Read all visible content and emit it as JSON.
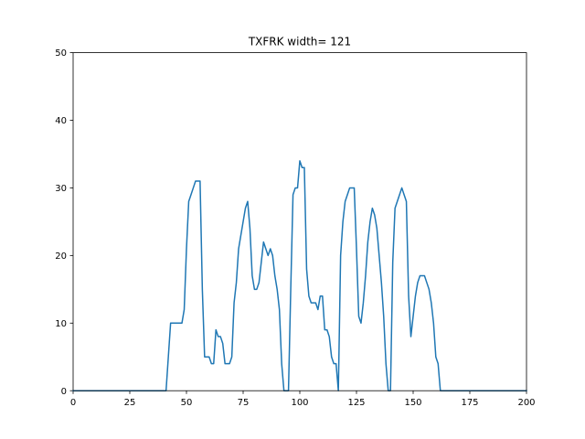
{
  "chart_data": {
    "type": "line",
    "title": "TXFRK width= 121",
    "xlabel": "",
    "ylabel": "",
    "xlim": [
      0,
      200
    ],
    "ylim": [
      0,
      50
    ],
    "xticks": [
      0,
      25,
      50,
      75,
      100,
      125,
      150,
      175,
      200
    ],
    "yticks": [
      0,
      10,
      20,
      30,
      40,
      50
    ],
    "grid": false,
    "series": [
      {
        "color": "#1f77b4",
        "x": [
          0,
          41,
          42,
          43,
          44,
          45,
          46,
          47,
          48,
          49,
          50,
          51,
          52,
          53,
          54,
          55,
          56,
          57,
          58,
          59,
          60,
          61,
          62,
          63,
          64,
          65,
          66,
          67,
          68,
          69,
          70,
          71,
          72,
          73,
          74,
          75,
          76,
          77,
          78,
          79,
          80,
          81,
          82,
          83,
          84,
          85,
          86,
          87,
          88,
          89,
          90,
          91,
          92,
          93,
          94,
          95,
          96,
          97,
          98,
          99,
          100,
          101,
          102,
          103,
          104,
          105,
          106,
          107,
          108,
          109,
          110,
          111,
          112,
          113,
          114,
          115,
          116,
          117,
          118,
          119,
          120,
          121,
          122,
          123,
          124,
          125,
          126,
          127,
          128,
          129,
          130,
          131,
          132,
          133,
          134,
          135,
          136,
          137,
          138,
          139,
          140,
          141,
          142,
          143,
          144,
          145,
          146,
          147,
          148,
          149,
          150,
          151,
          152,
          153,
          154,
          155,
          156,
          157,
          158,
          159,
          160,
          161,
          162,
          200
        ],
        "y": [
          0,
          0,
          5,
          10,
          10,
          10,
          10,
          10,
          10,
          12,
          21,
          28,
          29,
          30,
          31,
          31,
          31,
          15,
          5,
          5,
          5,
          4,
          4,
          9,
          8,
          8,
          7,
          4,
          4,
          4,
          5,
          13,
          16,
          21,
          23,
          25,
          27,
          28,
          24,
          17,
          15,
          15,
          16,
          19,
          22,
          21,
          20,
          21,
          20,
          17,
          15,
          12,
          4,
          0,
          0,
          0,
          15,
          29,
          30,
          30,
          34,
          33,
          33,
          18,
          14,
          13,
          13,
          13,
          12,
          14,
          14,
          9,
          9,
          8,
          5,
          4,
          4,
          0,
          20,
          25,
          28,
          29,
          30,
          30,
          30,
          21,
          11,
          10,
          13,
          17,
          22,
          25,
          27,
          26,
          24,
          20,
          16,
          11,
          4,
          0,
          0,
          19,
          27,
          28,
          29,
          30,
          29,
          28,
          14,
          8,
          11,
          14,
          16,
          17,
          17,
          17,
          16,
          15,
          13,
          10,
          5,
          4,
          0,
          0
        ]
      }
    ]
  }
}
